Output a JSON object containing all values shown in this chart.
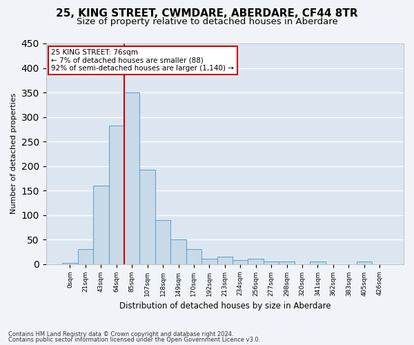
{
  "title": "25, KING STREET, CWMDARE, ABERDARE, CF44 8TR",
  "subtitle": "Size of property relative to detached houses in Aberdare",
  "xlabel": "Distribution of detached houses by size in Aberdare",
  "ylabel": "Number of detached properties",
  "footer_line1": "Contains HM Land Registry data © Crown copyright and database right 2024.",
  "footer_line2": "Contains public sector information licensed under the Open Government Licence v3.0.",
  "bin_labels": [
    "0sqm",
    "21sqm",
    "43sqm",
    "64sqm",
    "85sqm",
    "107sqm",
    "128sqm",
    "149sqm",
    "170sqm",
    "192sqm",
    "213sqm",
    "234sqm",
    "256sqm",
    "277sqm",
    "298sqm",
    "320sqm",
    "341sqm",
    "362sqm",
    "383sqm",
    "405sqm",
    "426sqm"
  ],
  "bar_values": [
    2,
    30,
    160,
    283,
    350,
    192,
    90,
    50,
    30,
    10,
    15,
    8,
    10,
    5,
    5,
    0,
    5,
    0,
    0,
    5,
    0
  ],
  "bar_color": "#c8d9e8",
  "bar_edge_color": "#5a9ec9",
  "annotation_box_color": "#ffffff",
  "annotation_border_color": "#cc0000",
  "vertical_line_color": "#cc0000",
  "vertical_line_x": 3.5,
  "annotation_title": "25 KING STREET: 76sqm",
  "annotation_line1": "← 7% of detached houses are smaller (88)",
  "annotation_line2": "92% of semi-detached houses are larger (1,140) →",
  "ylim": [
    0,
    450
  ],
  "background_color": "#dce6f0",
  "grid_color": "#ffffff",
  "title_fontsize": 11,
  "subtitle_fontsize": 9.5
}
